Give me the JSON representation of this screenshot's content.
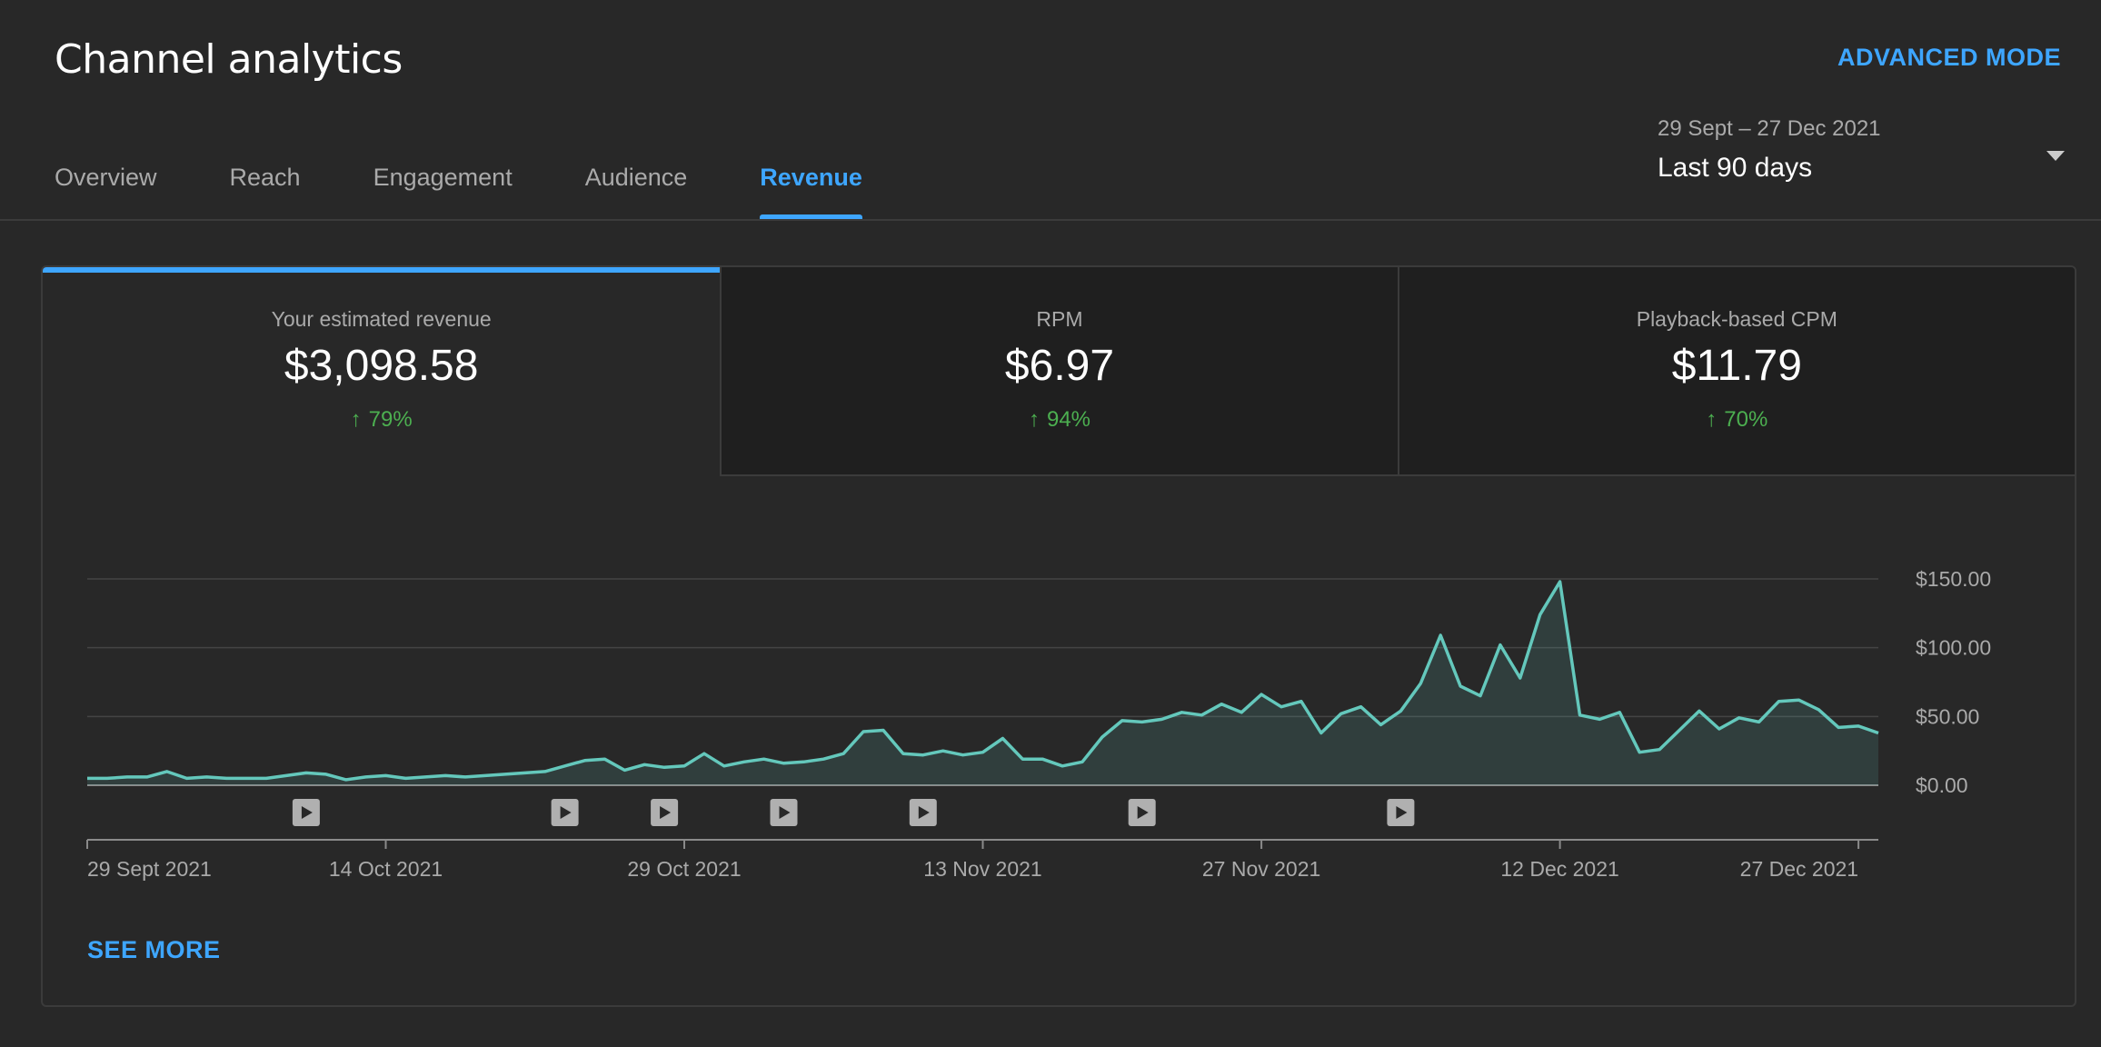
{
  "header": {
    "title": "Channel analytics",
    "advanced_mode": "ADVANCED MODE"
  },
  "tabs": [
    {
      "label": "Overview",
      "active": false
    },
    {
      "label": "Reach",
      "active": false
    },
    {
      "label": "Engagement",
      "active": false
    },
    {
      "label": "Audience",
      "active": false
    },
    {
      "label": "Revenue",
      "active": true
    }
  ],
  "date_picker": {
    "range": "29 Sept – 27 Dec 2021",
    "label": "Last 90 days",
    "icon": "chevron-down-icon"
  },
  "metrics": [
    {
      "label": "Your estimated revenue",
      "value": "$3,098.58",
      "change": "79%",
      "direction": "up",
      "active": true
    },
    {
      "label": "RPM",
      "value": "$6.97",
      "change": "94%",
      "direction": "up",
      "active": false
    },
    {
      "label": "Playback-based CPM",
      "value": "$11.79",
      "change": "70%",
      "direction": "up",
      "active": false
    }
  ],
  "see_more": "SEE MORE",
  "colors": {
    "background": "#282828",
    "accent": "#3ea6ff",
    "line": "#64c8bc",
    "positive": "#4caf50"
  },
  "chart_data": {
    "type": "area",
    "ylim": [
      0,
      150
    ],
    "y_ticks": [
      "$0.00",
      "$50.00",
      "$100.00",
      "$150.00"
    ],
    "y_tick_values": [
      0,
      50,
      100,
      150
    ],
    "x_tick_labels": [
      "29 Sept 2021",
      "14 Oct 2021",
      "29 Oct 2021",
      "13 Nov 2021",
      "27 Nov 2021",
      "12 Dec 2021",
      "27 Dec 2021"
    ],
    "x_tick_days": [
      0,
      15,
      30,
      45,
      59,
      74,
      89
    ],
    "values": [
      5,
      5,
      6,
      6,
      10,
      5,
      6,
      5,
      5,
      5,
      7,
      9,
      8,
      4,
      6,
      7,
      5,
      6,
      7,
      6,
      7,
      8,
      9,
      10,
      14,
      18,
      19,
      11,
      15,
      13,
      14,
      23,
      14,
      17,
      19,
      16,
      17,
      19,
      23,
      39,
      40,
      23,
      22,
      25,
      22,
      24,
      34,
      19,
      19,
      14,
      17,
      35,
      47,
      46,
      48,
      53,
      51,
      59,
      53,
      66,
      57,
      61,
      38,
      52,
      57,
      44,
      54,
      74,
      109,
      72,
      65,
      102,
      78,
      124,
      148,
      51,
      48,
      53,
      24,
      26,
      40,
      54,
      41,
      49,
      46,
      61,
      62,
      55,
      42,
      43,
      38
    ],
    "video_markers": [
      11,
      24,
      29,
      35,
      42,
      53,
      66
    ],
    "marker_icon": "play-icon"
  }
}
